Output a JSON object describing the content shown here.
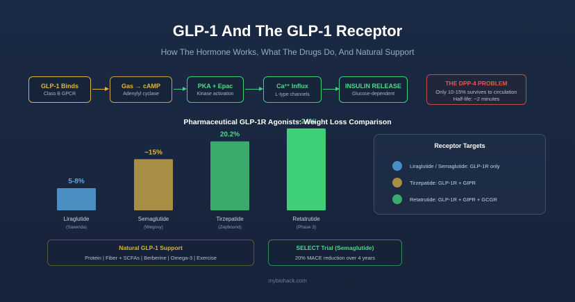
{
  "header": {
    "title": "GLP-1 And The GLP-1 Receptor",
    "subtitle": "How The Hormone Works, What The Drugs Do, And Natural Support"
  },
  "pathway": {
    "steps": [
      {
        "label": "GLP-1 Binds",
        "sub": "Class B GPCR",
        "color": "#e0b43c"
      },
      {
        "label": "Gas → cAMP",
        "sub": "Adenylyl cyclase",
        "color": "#c9a24a"
      },
      {
        "label": "PKA + Epac",
        "sub": "Kinase activation",
        "color": "#3fcf80"
      },
      {
        "label": "Ca²⁺ Influx",
        "sub": "L-type channels",
        "color": "#3fcf80"
      },
      {
        "label": "INSULIN RELEASE",
        "sub": "Glucose-dependent",
        "color": "#3fcf80"
      }
    ],
    "problem": {
      "label": "THE DPP-4 PROBLEM",
      "line1": "Only 10-15% survives to circulation",
      "line2": "Half-life: ~2 minutes",
      "color": "#f05252"
    }
  },
  "chart_data": {
    "type": "bar",
    "title": "Pharmaceutical GLP-1R Agonists: Weight Loss Comparison",
    "categories": [
      "Liraglutide",
      "Semaglutide",
      "Tirzepatide",
      "Retatrutide"
    ],
    "brands": [
      "(Saxenda)",
      "(Wegovy)",
      "(Zepbound)",
      "(Phase 3)"
    ],
    "value_labels": [
      "5-8%",
      "~15%",
      "20.2%",
      "~24%"
    ],
    "values": [
      6.5,
      15,
      20.2,
      24
    ],
    "colors": [
      "#4a8fc4",
      "#a88d44",
      "#3aab6d",
      "#3fcf77"
    ],
    "label_colors": [
      "#5ea7e0",
      "#e0b43c",
      "#4fd98a",
      "#4fd98a"
    ],
    "ylim": [
      0,
      24
    ],
    "xlabel": "",
    "ylabel": ""
  },
  "targets": {
    "title": "Receptor Targets",
    "items": [
      {
        "text": "Liraglutide / Semaglutide: GLP-1R only",
        "color": "#4a8fc4"
      },
      {
        "text": "Tirzepatide: GLP-1R + GIPR",
        "color": "#a88d44"
      },
      {
        "text": "Retatrutide: GLP-1R + GIPR + GCGR",
        "color": "#3aab6d"
      }
    ]
  },
  "natural": {
    "title": "Natural GLP-1 Support",
    "items": "Protein | Fiber + SCFAs | Berberine | Omega-3 | Exercise",
    "color": "#e0b43c"
  },
  "select_trial": {
    "title": "SELECT Trial (Semaglutide)",
    "text": "20% MACE reduction over 4 years",
    "color": "#3fcf80"
  },
  "footer": "mybiohack.com"
}
